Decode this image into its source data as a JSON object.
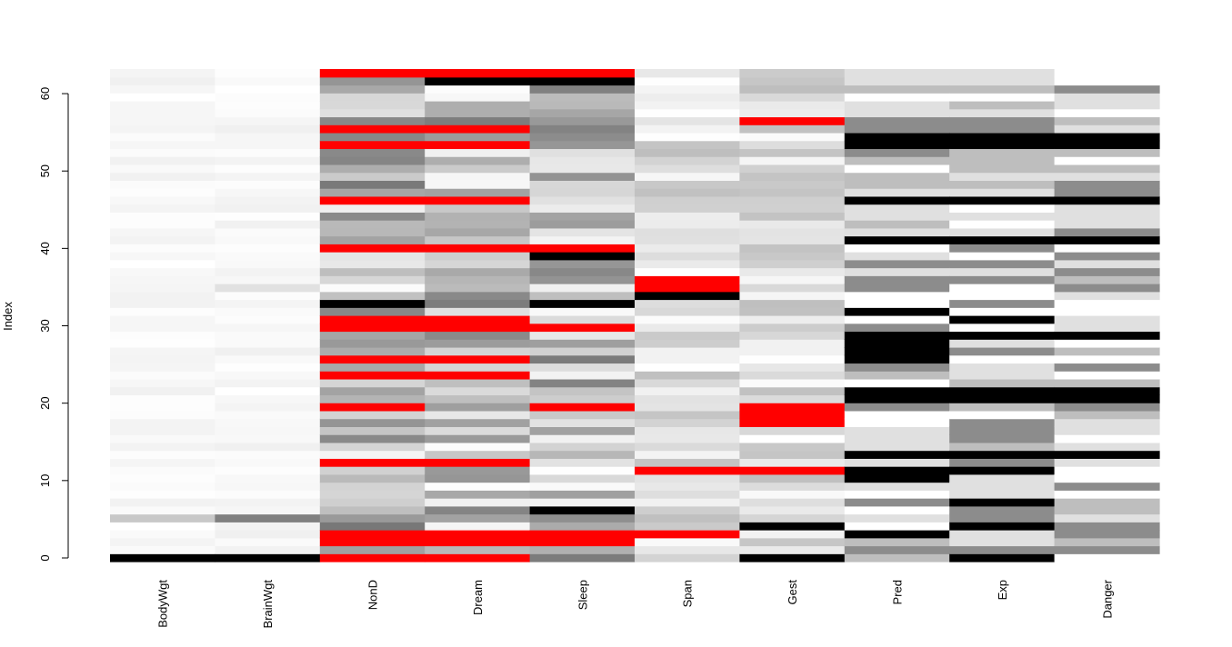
{
  "chart_data": {
    "type": "heatmap",
    "title": "",
    "ylabel": "Index",
    "xlabel": "",
    "ylim": [
      0,
      62
    ],
    "yticks": [
      0,
      10,
      20,
      30,
      40,
      50,
      60
    ],
    "columns": [
      "BodyWgt",
      "BrainWgt",
      "NonD",
      "Dream",
      "Sleep",
      "Span",
      "Gest",
      "Pred",
      "Exp",
      "Danger"
    ],
    "missing_color": "#ff0000",
    "scale": "grayscale: white = low, black = high",
    "rows": 62,
    "missing_rows": {
      "NonD": [
        1,
        3,
        4,
        13,
        20,
        24,
        26,
        30,
        31,
        40,
        46,
        53,
        55,
        62
      ],
      "Dream": [
        1,
        3,
        4,
        13,
        24,
        26,
        30,
        31,
        40,
        46,
        53,
        55,
        62
      ],
      "Sleep": [
        3,
        4,
        20,
        30,
        40,
        62
      ],
      "Span": [
        4,
        12,
        35,
        36
      ],
      "Gest": [
        12,
        18,
        19,
        20,
        56
      ]
    },
    "dark_rows": {
      "BodyWgt": [
        1
      ],
      "BrainWgt": [
        1
      ],
      "NonD": [
        33
      ],
      "Dream": [
        61
      ],
      "Sleep": [
        7,
        33,
        39,
        61
      ],
      "Span": [
        34
      ],
      "Gest": [
        1,
        5
      ],
      "Pred": [
        4,
        11,
        12,
        14,
        21,
        22,
        26,
        27,
        28,
        29,
        32,
        41,
        46,
        53,
        54
      ],
      "Exp": [
        1,
        5,
        8,
        12,
        14,
        21,
        22,
        29,
        31,
        41,
        46,
        53,
        54
      ],
      "Danger": [
        14,
        21,
        22,
        29,
        41,
        46,
        53,
        54
      ]
    }
  }
}
